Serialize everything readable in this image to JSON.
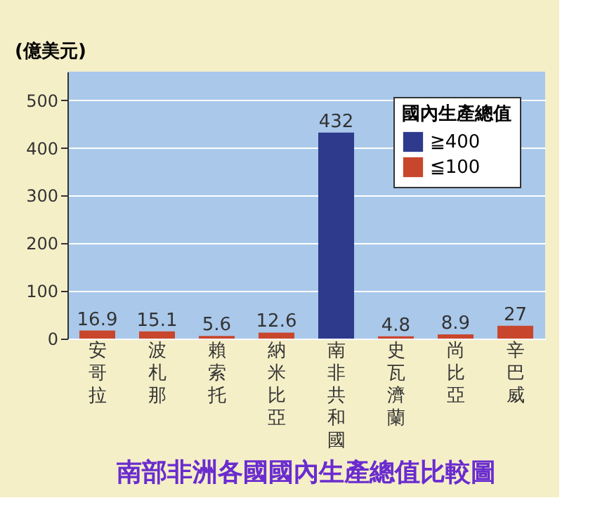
{
  "chart_data": {
    "type": "bar",
    "title": "南部非洲各國國內生產總值比較圖",
    "ylabel": "(億美元)",
    "legend_title": "國內生產總值",
    "categories": [
      "安哥拉",
      "波札那",
      "賴索托",
      "納米比亞",
      "南非共和國",
      "史瓦濟蘭",
      "尚比亞",
      "辛巴威"
    ],
    "series": [
      {
        "name": "≧400",
        "color": "#2e3a8c",
        "values": [
          null,
          null,
          null,
          null,
          432,
          null,
          null,
          null
        ]
      },
      {
        "name": "≦100",
        "color": "#c8462c",
        "values": [
          16.9,
          15.1,
          5.6,
          12.6,
          null,
          4.8,
          8.9,
          27
        ]
      }
    ],
    "data_labels": true,
    "ylim": [
      0,
      560
    ],
    "yticks": [
      0,
      100,
      200,
      300,
      400,
      500
    ],
    "grid": "y",
    "legend": "top right"
  }
}
